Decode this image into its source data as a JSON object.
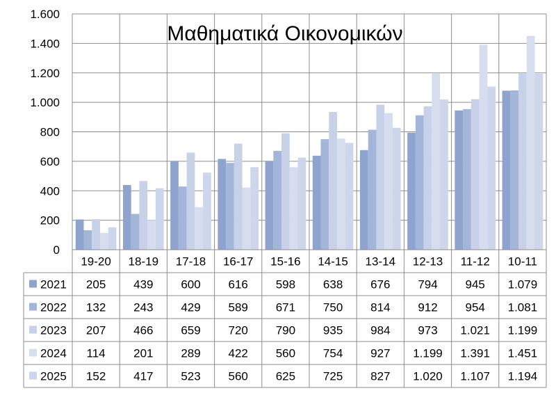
{
  "chart_data": {
    "type": "bar",
    "title": "Μαθηματικά Οικονομικών",
    "categories": [
      "19-20",
      "18-19",
      "17-18",
      "16-17",
      "15-16",
      "14-15",
      "13-14",
      "12-13",
      "11-12",
      "10-11"
    ],
    "series": [
      {
        "name": "2021",
        "values": [
          205,
          439,
          600,
          616,
          598,
          638,
          676,
          794,
          945,
          1079
        ],
        "labels": [
          "205",
          "439",
          "600",
          "616",
          "598",
          "638",
          "676",
          "794",
          "945",
          "1.079"
        ]
      },
      {
        "name": "2022",
        "values": [
          132,
          243,
          429,
          589,
          671,
          750,
          814,
          912,
          954,
          1081
        ],
        "labels": [
          "132",
          "243",
          "429",
          "589",
          "671",
          "750",
          "814",
          "912",
          "954",
          "1.081"
        ]
      },
      {
        "name": "2023",
        "values": [
          207,
          466,
          659,
          720,
          790,
          935,
          984,
          973,
          1021,
          1199
        ],
        "labels": [
          "207",
          "466",
          "659",
          "720",
          "790",
          "935",
          "984",
          "973",
          "1.021",
          "1.199"
        ]
      },
      {
        "name": "2024",
        "values": [
          114,
          201,
          289,
          422,
          560,
          754,
          927,
          1199,
          1391,
          1451
        ],
        "labels": [
          "114",
          "201",
          "289",
          "422",
          "560",
          "754",
          "927",
          "1.199",
          "1.391",
          "1.451"
        ]
      },
      {
        "name": "2025",
        "values": [
          152,
          417,
          523,
          560,
          625,
          725,
          827,
          1020,
          1107,
          1194
        ],
        "labels": [
          "152",
          "417",
          "523",
          "560",
          "625",
          "725",
          "827",
          "1.020",
          "1.107",
          "1.194"
        ]
      }
    ],
    "ylim": [
      0,
      1600
    ],
    "yticks": [
      0,
      200,
      400,
      600,
      800,
      1000,
      1200,
      1400,
      1600
    ],
    "ytick_labels": [
      "0",
      "200",
      "400",
      "600",
      "800",
      "1.000",
      "1.200",
      "1.400",
      "1.600"
    ],
    "grid": true,
    "legend": "data-table",
    "colors": [
      "#8fa3cf",
      "#a4b5da",
      "#c7d1e8",
      "#d6ddee",
      "#cdd6eb"
    ]
  }
}
